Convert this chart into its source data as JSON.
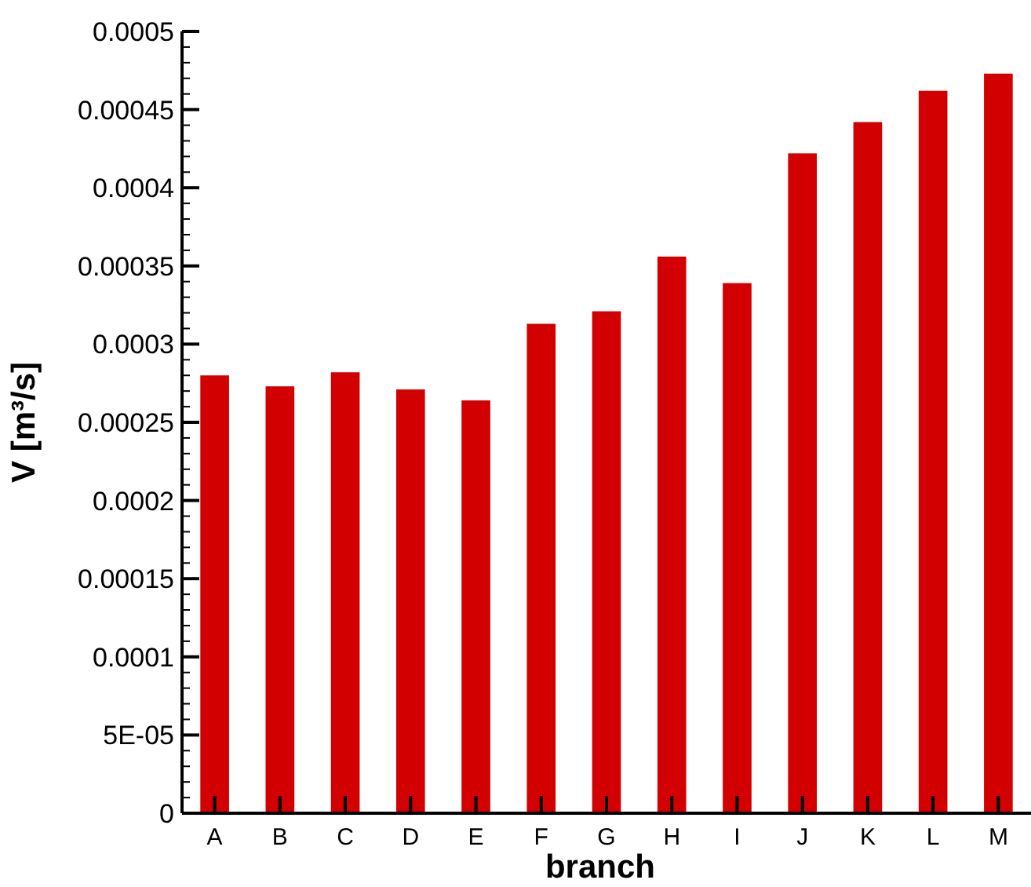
{
  "chart_data": {
    "type": "bar",
    "xlabel": "branch",
    "ylabel": "V [m³/s]",
    "categories": [
      "A",
      "B",
      "C",
      "D",
      "E",
      "F",
      "G",
      "H",
      "I",
      "J",
      "K",
      "L",
      "M"
    ],
    "values": [
      0.00028,
      0.000273,
      0.000282,
      0.000271,
      0.000264,
      0.000313,
      0.000321,
      0.000356,
      0.000339,
      0.000422,
      0.000442,
      0.000462,
      0.000473
    ],
    "color": "#d20000",
    "ylim": [
      0,
      0.0005
    ],
    "yticks": [
      0,
      {
        "value": 1e-05,
        "label": null
      },
      {
        "value": 2e-05,
        "label": null
      },
      {
        "value": 3e-05,
        "label": null
      },
      {
        "value": 4e-05,
        "label": null
      },
      {
        "value": 5e-05,
        "label": "5E-05"
      },
      {
        "value": 6e-05,
        "label": null
      },
      {
        "value": 7e-05,
        "label": null
      },
      {
        "value": 8e-05,
        "label": null
      },
      {
        "value": 9e-05,
        "label": null
      },
      0.0001,
      {
        "value": 0.00011,
        "label": null
      },
      {
        "value": 0.00012,
        "label": null
      },
      {
        "value": 0.00013,
        "label": null
      },
      {
        "value": 0.00014,
        "label": null
      },
      0.00015,
      {
        "value": 0.00016,
        "label": null
      },
      {
        "value": 0.00017,
        "label": null
      },
      {
        "value": 0.00018,
        "label": null
      },
      {
        "value": 0.00019,
        "label": null
      },
      0.0002,
      {
        "value": 0.00021,
        "label": null
      },
      {
        "value": 0.00022,
        "label": null
      },
      {
        "value": 0.00023,
        "label": null
      },
      {
        "value": 0.00024,
        "label": null
      },
      0.00025,
      {
        "value": 0.00026,
        "label": null
      },
      {
        "value": 0.00027,
        "label": null
      },
      {
        "value": 0.00028,
        "label": null
      },
      {
        "value": 0.00029,
        "label": null
      },
      0.0003,
      {
        "value": 0.00031,
        "label": null
      },
      {
        "value": 0.00032,
        "label": null
      },
      {
        "value": 0.00033,
        "label": null
      },
      {
        "value": 0.00034,
        "label": null
      },
      0.00035,
      {
        "value": 0.00036,
        "label": null
      },
      {
        "value": 0.00037,
        "label": null
      },
      {
        "value": 0.00038,
        "label": null
      },
      {
        "value": 0.00039,
        "label": null
      },
      0.0004,
      {
        "value": 0.00041,
        "label": null
      },
      {
        "value": 0.00042,
        "label": null
      },
      {
        "value": 0.00043,
        "label": null
      },
      {
        "value": 0.00044,
        "label": null
      },
      0.00045,
      {
        "value": 0.00046,
        "label": null
      },
      {
        "value": 0.00047,
        "label": null
      },
      {
        "value": 0.00048,
        "label": null
      },
      {
        "value": 0.00049,
        "label": null
      },
      0.0005
    ],
    "grid": false
  }
}
